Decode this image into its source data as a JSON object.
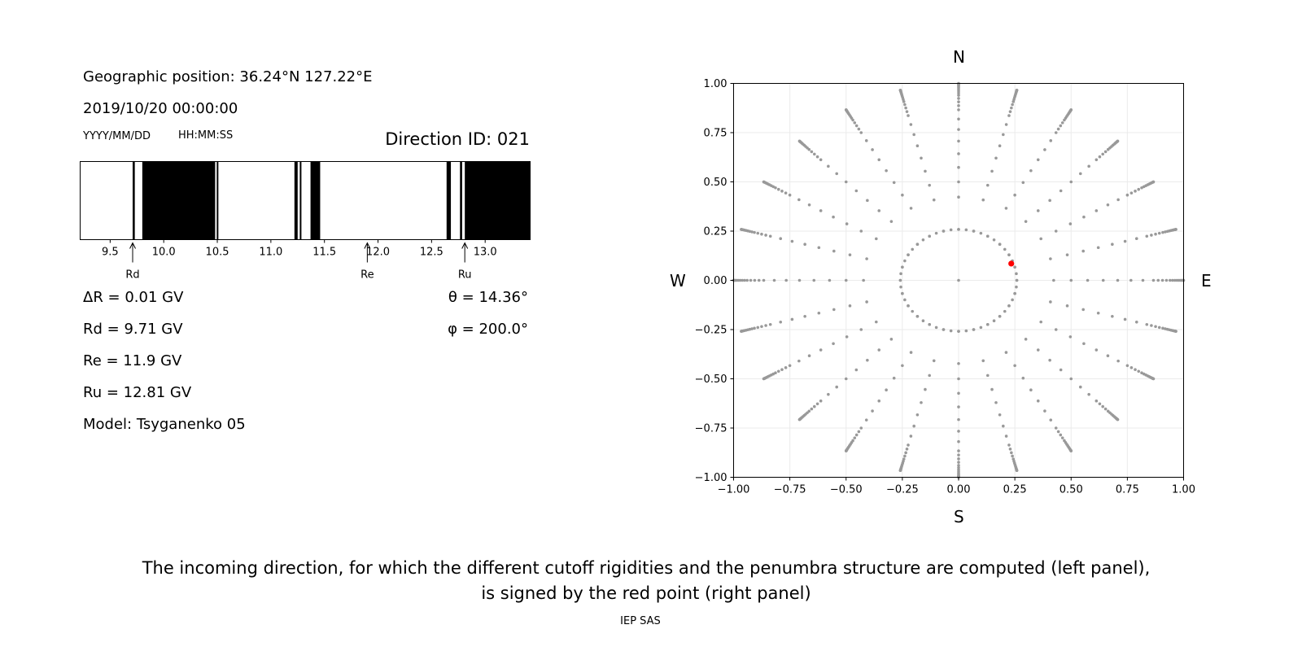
{
  "left_panel": {
    "geo_position": "Geographic position: 36.24°N 127.22°E",
    "datetime": "2019/10/20 00:00:00",
    "date_format": "YYYY/MM/DD",
    "time_format": "HH:MM:SS",
    "direction_id": "Direction ID: 021",
    "delta_r": "ΔR = 0.01 GV",
    "rd": "Rd = 9.71 GV",
    "re": "Re = 11.9 GV",
    "ru": "Ru = 12.81 GV",
    "model": "Model: Tsyganenko 05",
    "theta": "θ = 14.36°",
    "phi": "φ = 200.0°",
    "markers": [
      {
        "label": "Rd",
        "value": 9.71
      },
      {
        "label": "Re",
        "value": 11.9
      },
      {
        "label": "Ru",
        "value": 12.81
      }
    ]
  },
  "right_panel": {
    "north": "N",
    "south": "S",
    "west": "W",
    "east": "E"
  },
  "caption_line1": "The incoming direction, for which the different cutoff rigidities and the penumbra structure are computed (left panel),",
  "caption_line2": "is signed by the red point (right panel)",
  "footer": "IEP SAS",
  "chart_data": [
    {
      "type": "penumbra-bar",
      "xlim": [
        9.22,
        13.42
      ],
      "xticks": [
        9.5,
        10.0,
        10.5,
        11.0,
        11.5,
        12.0,
        12.5,
        13.0
      ],
      "forbidden_bands": [
        [
          9.71,
          9.73
        ],
        [
          9.8,
          10.48
        ],
        [
          10.495,
          10.51
        ],
        [
          11.22,
          11.25
        ],
        [
          11.27,
          11.285
        ],
        [
          11.37,
          11.46
        ],
        [
          12.64,
          12.68
        ],
        [
          12.765,
          12.785
        ],
        [
          12.81,
          13.42
        ]
      ],
      "band_color": "#000000"
    },
    {
      "type": "scatter",
      "xlim": [
        -1.0,
        1.0
      ],
      "ylim": [
        -1.0,
        1.0
      ],
      "xticks": [
        -1.0,
        -0.75,
        -0.5,
        -0.25,
        0.0,
        0.25,
        0.5,
        0.75,
        1.0
      ],
      "yticks": [
        -1.0,
        -0.75,
        -0.5,
        -0.25,
        0.0,
        0.25,
        0.5,
        0.75,
        1.0
      ],
      "grid": true,
      "grid_directions": {
        "zenith_angles_deg": [
          0,
          15,
          25,
          30,
          35,
          40,
          45,
          50,
          55,
          60,
          62.5,
          65,
          67.5,
          70,
          72,
          74,
          76,
          78,
          80,
          82,
          84,
          86,
          88,
          90
        ],
        "azimuth_step_deg": 15,
        "color": "#999999"
      },
      "highlight": {
        "x": 0.234,
        "y": 0.085,
        "color": "#ff0000"
      }
    }
  ]
}
